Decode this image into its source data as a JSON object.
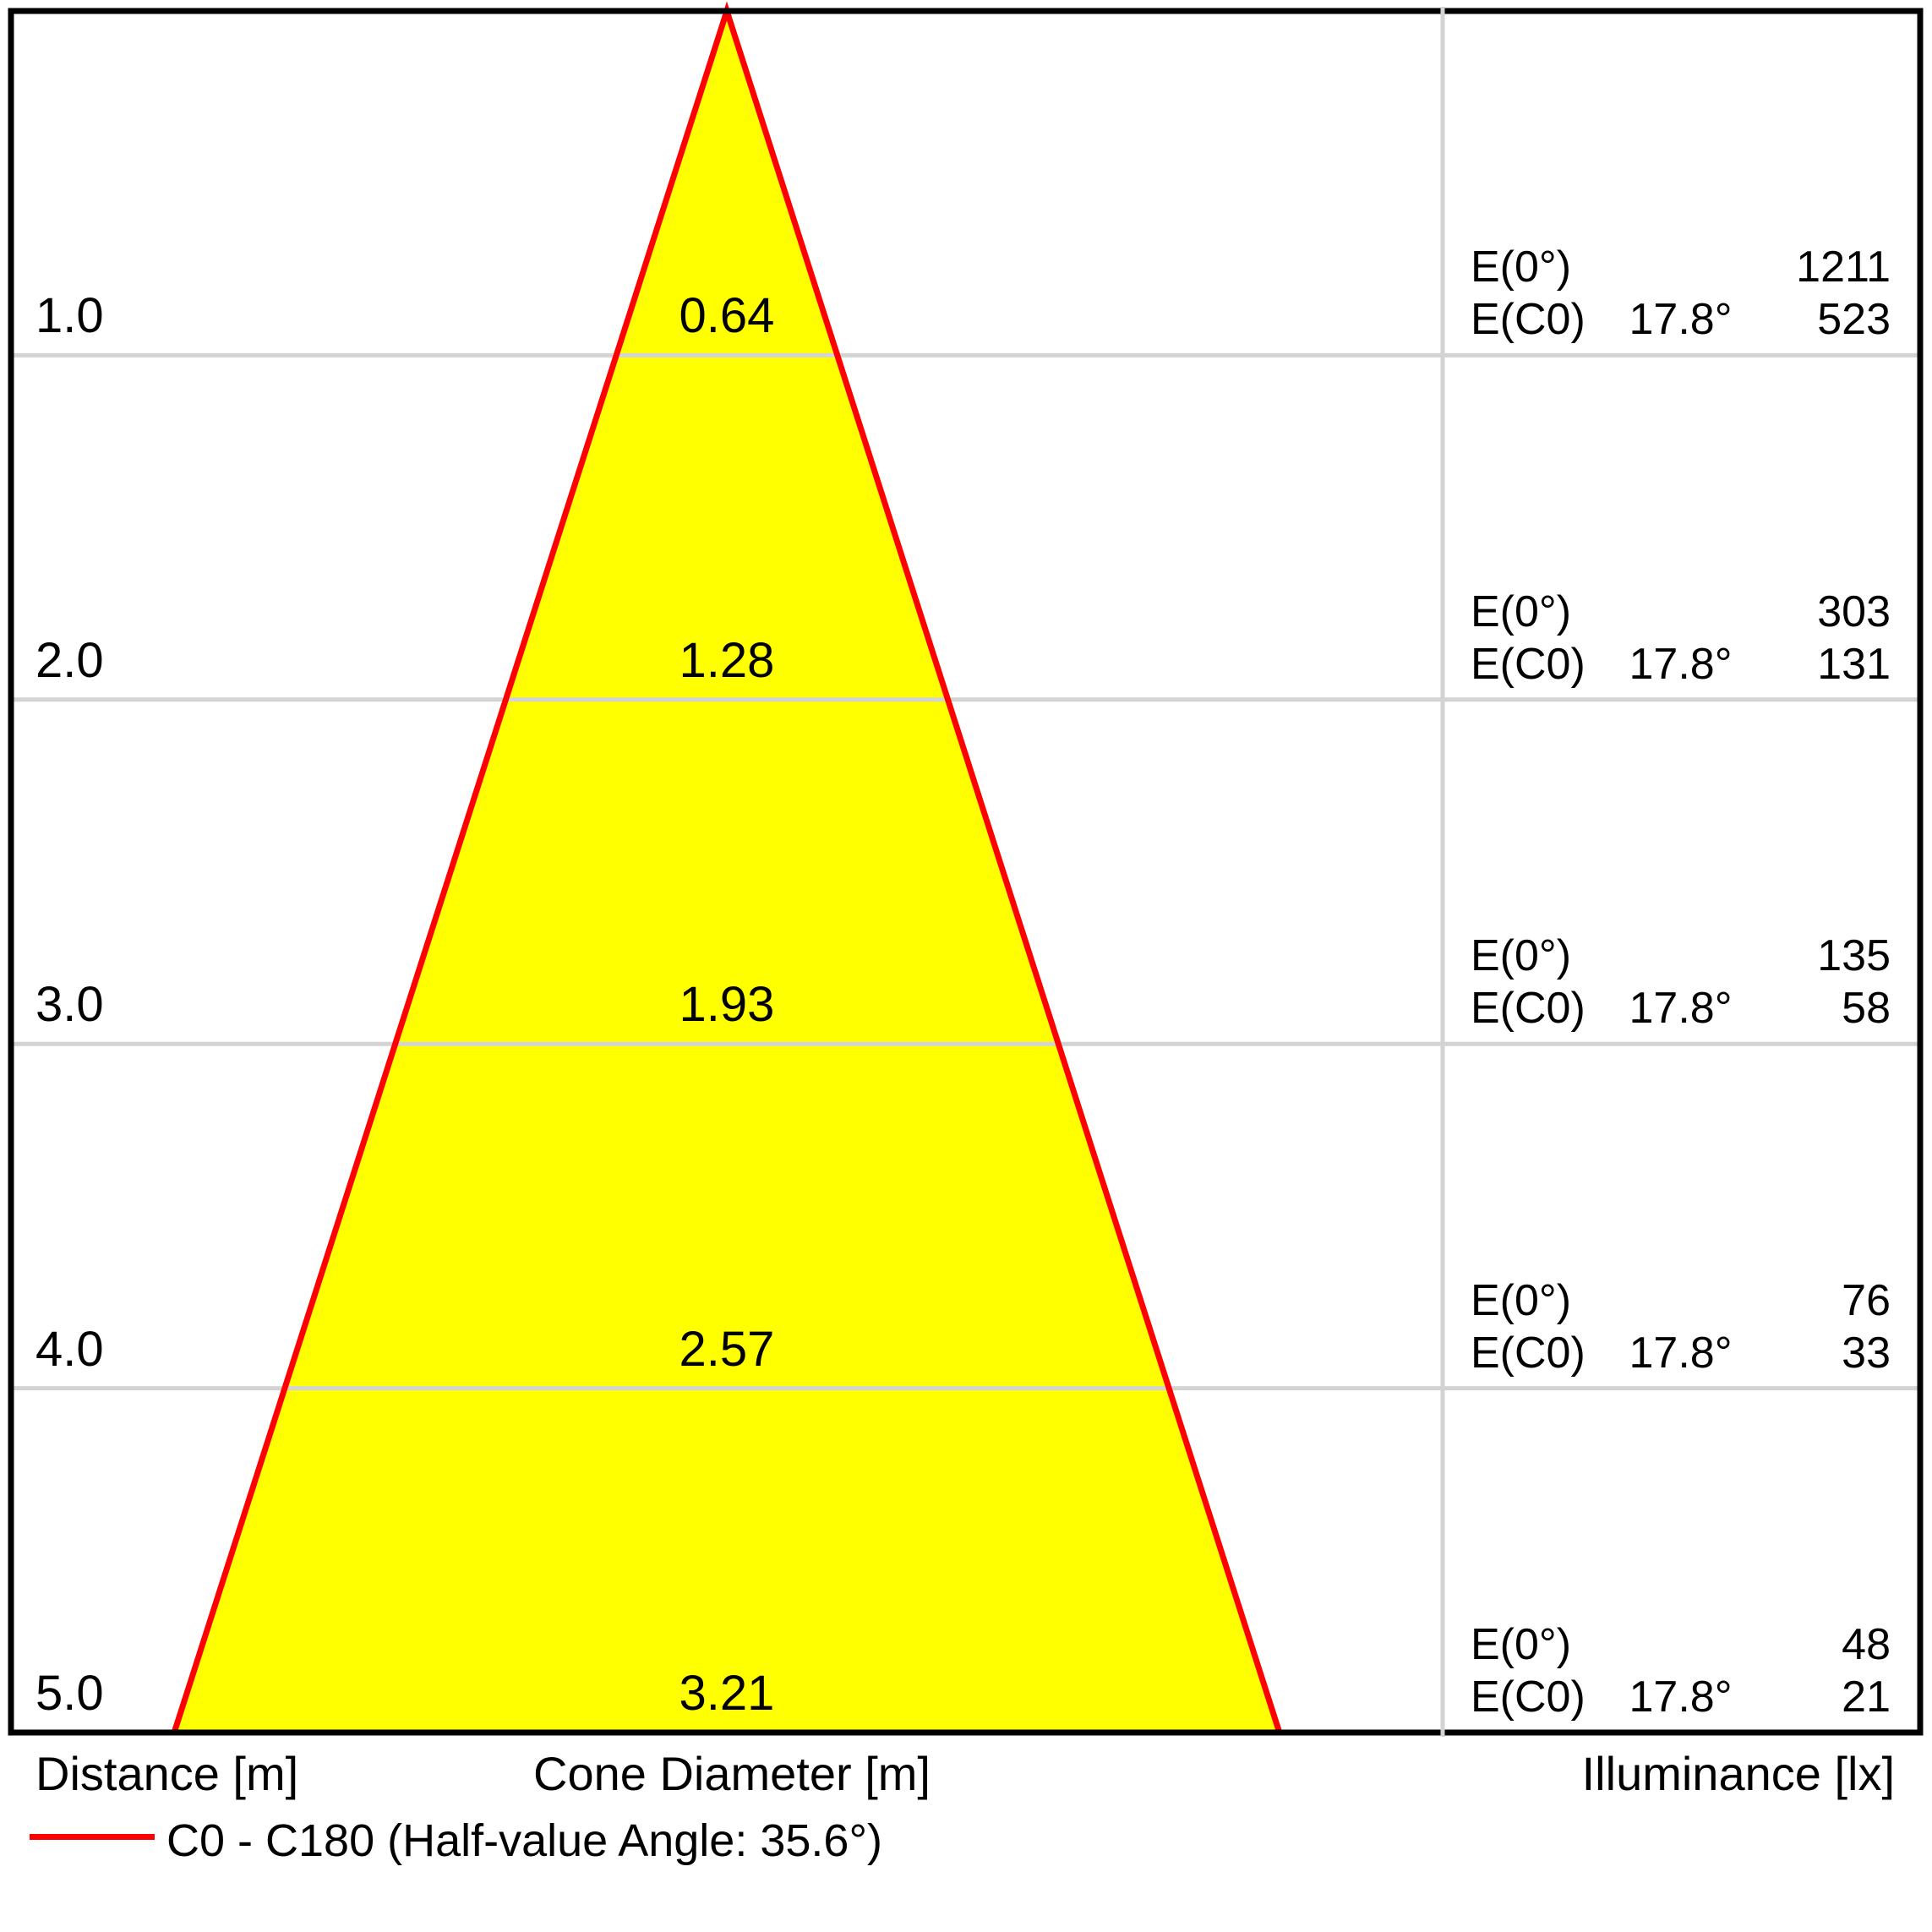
{
  "colors": {
    "cone_fill": "#ffff00",
    "cone_edge": "#ff0000",
    "grid_line": "#d3d3d3",
    "border": "#000000",
    "text": "#000000"
  },
  "rows": [
    {
      "distance": "1.0",
      "diameter": "0.64",
      "e0_label": "E(0°)",
      "e0_value": "1211",
      "ec0_label": "E(C0)",
      "angle": "17.8°",
      "ec0_value": "523"
    },
    {
      "distance": "2.0",
      "diameter": "1.28",
      "e0_label": "E(0°)",
      "e0_value": "303",
      "ec0_label": "E(C0)",
      "angle": "17.8°",
      "ec0_value": "131"
    },
    {
      "distance": "3.0",
      "diameter": "1.93",
      "e0_label": "E(0°)",
      "e0_value": "135",
      "ec0_label": "E(C0)",
      "angle": "17.8°",
      "ec0_value": "58"
    },
    {
      "distance": "4.0",
      "diameter": "2.57",
      "e0_label": "E(0°)",
      "e0_value": "76",
      "ec0_label": "E(C0)",
      "angle": "17.8°",
      "ec0_value": "33"
    },
    {
      "distance": "5.0",
      "diameter": "3.21",
      "e0_label": "E(0°)",
      "e0_value": "48",
      "ec0_label": "E(C0)",
      "angle": "17.8°",
      "ec0_value": "21"
    }
  ],
  "footer": {
    "distance_label": "Distance [m]",
    "cone_diameter_label": "Cone Diameter [m]",
    "illuminance_label": "Illuminance [lx]"
  },
  "legend": {
    "label": "C0 - C180 (Half-value Angle: 35.6°)"
  },
  "chart_data": {
    "type": "area",
    "subtype": "light-cone-diagram",
    "distances_m": [
      1.0,
      2.0,
      3.0,
      4.0,
      5.0
    ],
    "cone_diameters_m": [
      0.64,
      1.28,
      1.93,
      2.57,
      3.21
    ],
    "series": [
      {
        "name": "E(0°) [lx]",
        "values": [
          1211,
          303,
          135,
          76,
          48
        ]
      },
      {
        "name": "E(C0) [lx]",
        "values": [
          523,
          131,
          58,
          33,
          21
        ]
      }
    ],
    "ec0_angle_deg": 17.8,
    "half_value_angle_deg": 35.6,
    "c_planes": "C0 - C180",
    "xlabel": "Cone Diameter [m]",
    "ylabel": "Distance [m]",
    "value_label": "Illuminance [lx]",
    "grid": true,
    "legend_position": "bottom-left"
  }
}
